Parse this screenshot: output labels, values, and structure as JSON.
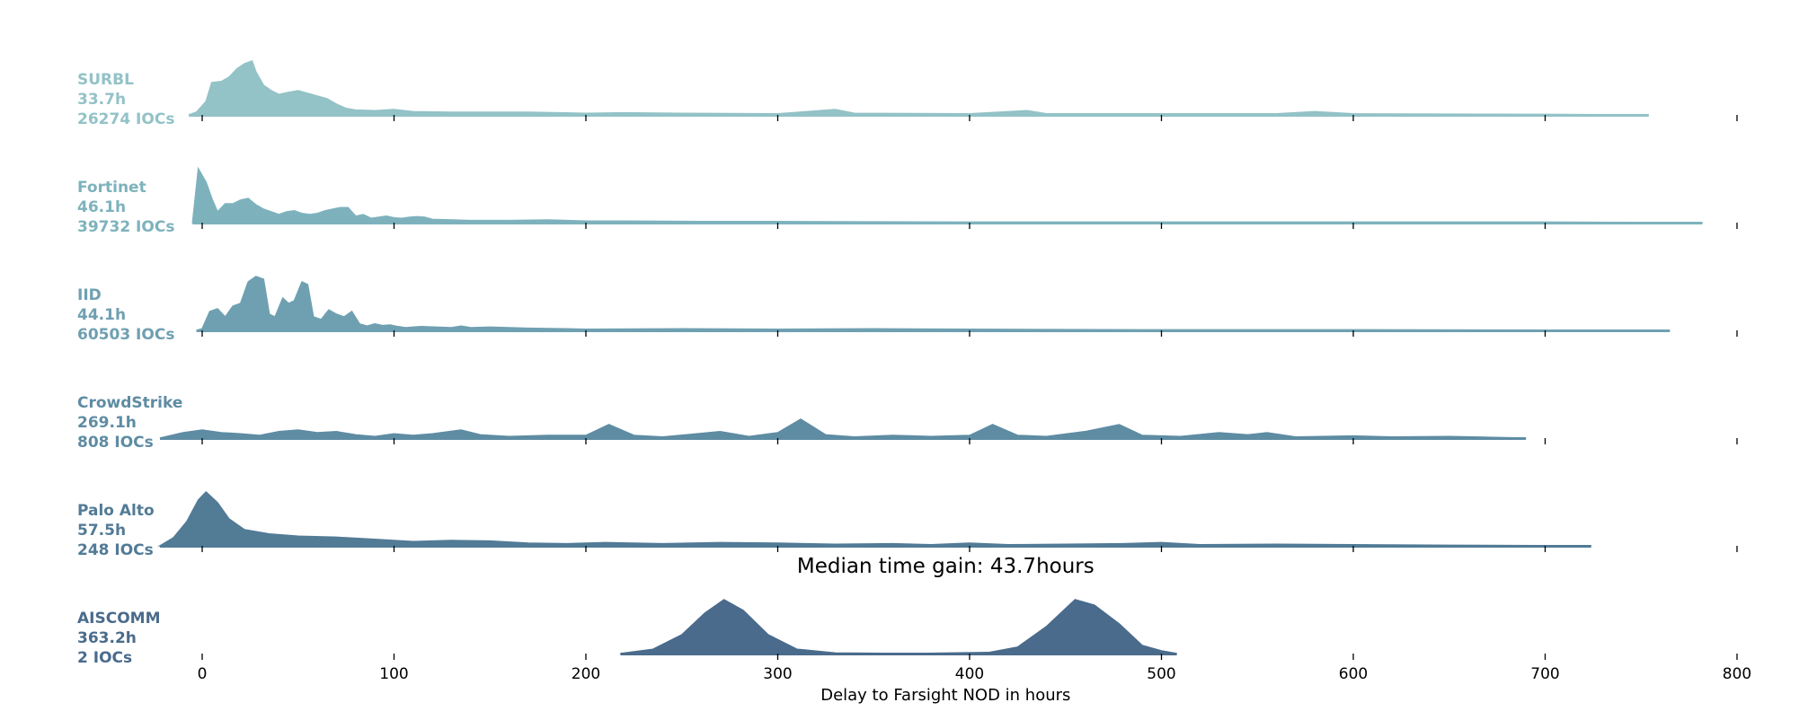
{
  "chart_data": {
    "type": "area",
    "subtype": "ridgeline",
    "xlabel": "Delay to Farsight NOD in hours",
    "xlim": [
      -25,
      800
    ],
    "xticks": [
      0,
      100,
      200,
      300,
      400,
      500,
      600,
      700,
      800
    ],
    "annotation": "Median time gain: 43.7hours",
    "series": [
      {
        "name": "SURBL",
        "median_label": "33.7h",
        "count_label": "26274 IOCs",
        "color": "#93c2c7",
        "x_range": [
          -7,
          754
        ],
        "points": [
          [
            -7,
            0
          ],
          [
            -3,
            0.05
          ],
          [
            2,
            0.25
          ],
          [
            5,
            0.6
          ],
          [
            10,
            0.62
          ],
          [
            14,
            0.7
          ],
          [
            18,
            0.85
          ],
          [
            22,
            0.95
          ],
          [
            26,
            1.0
          ],
          [
            28,
            0.8
          ],
          [
            32,
            0.55
          ],
          [
            36,
            0.45
          ],
          [
            40,
            0.38
          ],
          [
            45,
            0.42
          ],
          [
            50,
            0.45
          ],
          [
            55,
            0.4
          ],
          [
            60,
            0.35
          ],
          [
            65,
            0.3
          ],
          [
            70,
            0.2
          ],
          [
            75,
            0.12
          ],
          [
            80,
            0.09
          ],
          [
            90,
            0.08
          ],
          [
            100,
            0.1
          ],
          [
            110,
            0.06
          ],
          [
            130,
            0.05
          ],
          [
            150,
            0.05
          ],
          [
            170,
            0.05
          ],
          [
            200,
            0.03
          ],
          [
            220,
            0.04
          ],
          [
            250,
            0.03
          ],
          [
            300,
            0.02
          ],
          [
            330,
            0.1
          ],
          [
            340,
            0.03
          ],
          [
            400,
            0.02
          ],
          [
            430,
            0.08
          ],
          [
            440,
            0.02
          ],
          [
            500,
            0.02
          ],
          [
            560,
            0.02
          ],
          [
            580,
            0.06
          ],
          [
            600,
            0.02
          ],
          [
            700,
            0.01
          ],
          [
            754,
            0
          ]
        ]
      },
      {
        "name": "Fortinet",
        "median_label": "46.1h",
        "count_label": "39732 IOCs",
        "color": "#7db2bd",
        "x_range": [
          -5,
          782
        ],
        "points": [
          [
            -5,
            0
          ],
          [
            -2,
            1.0
          ],
          [
            2,
            0.75
          ],
          [
            5,
            0.45
          ],
          [
            8,
            0.2
          ],
          [
            12,
            0.35
          ],
          [
            16,
            0.35
          ],
          [
            20,
            0.42
          ],
          [
            24,
            0.45
          ],
          [
            28,
            0.33
          ],
          [
            32,
            0.25
          ],
          [
            36,
            0.2
          ],
          [
            40,
            0.15
          ],
          [
            44,
            0.2
          ],
          [
            48,
            0.22
          ],
          [
            52,
            0.17
          ],
          [
            56,
            0.15
          ],
          [
            60,
            0.17
          ],
          [
            64,
            0.22
          ],
          [
            68,
            0.25
          ],
          [
            72,
            0.28
          ],
          [
            76,
            0.28
          ],
          [
            80,
            0.12
          ],
          [
            84,
            0.15
          ],
          [
            88,
            0.08
          ],
          [
            92,
            0.1
          ],
          [
            96,
            0.12
          ],
          [
            100,
            0.09
          ],
          [
            104,
            0.08
          ],
          [
            108,
            0.1
          ],
          [
            112,
            0.11
          ],
          [
            116,
            0.1
          ],
          [
            120,
            0.06
          ],
          [
            140,
            0.04
          ],
          [
            160,
            0.04
          ],
          [
            180,
            0.05
          ],
          [
            200,
            0.03
          ],
          [
            220,
            0.03
          ],
          [
            260,
            0.02
          ],
          [
            300,
            0.02
          ],
          [
            400,
            0.01
          ],
          [
            500,
            0.01
          ],
          [
            600,
            0.01
          ],
          [
            700,
            0.01
          ],
          [
            782,
            0
          ]
        ]
      },
      {
        "name": "IID",
        "median_label": "44.1h",
        "count_label": "60503 IOCs",
        "color": "#6fa0b1",
        "x_range": [
          -3,
          765
        ],
        "points": [
          [
            -3,
            0
          ],
          [
            0,
            0.03
          ],
          [
            4,
            0.35
          ],
          [
            8,
            0.4
          ],
          [
            12,
            0.25
          ],
          [
            16,
            0.45
          ],
          [
            20,
            0.5
          ],
          [
            24,
            0.9
          ],
          [
            28,
            1.0
          ],
          [
            32,
            0.95
          ],
          [
            35,
            0.3
          ],
          [
            38,
            0.25
          ],
          [
            42,
            0.6
          ],
          [
            45,
            0.5
          ],
          [
            48,
            0.55
          ],
          [
            52,
            0.9
          ],
          [
            55,
            0.85
          ],
          [
            58,
            0.25
          ],
          [
            62,
            0.2
          ],
          [
            66,
            0.38
          ],
          [
            70,
            0.3
          ],
          [
            74,
            0.25
          ],
          [
            78,
            0.35
          ],
          [
            82,
            0.12
          ],
          [
            86,
            0.08
          ],
          [
            90,
            0.12
          ],
          [
            94,
            0.09
          ],
          [
            98,
            0.1
          ],
          [
            102,
            0.07
          ],
          [
            106,
            0.05
          ],
          [
            110,
            0.06
          ],
          [
            114,
            0.07
          ],
          [
            130,
            0.05
          ],
          [
            135,
            0.08
          ],
          [
            140,
            0.05
          ],
          [
            150,
            0.06
          ],
          [
            170,
            0.04
          ],
          [
            190,
            0.03
          ],
          [
            200,
            0.02
          ],
          [
            250,
            0.03
          ],
          [
            300,
            0.02
          ],
          [
            350,
            0.03
          ],
          [
            400,
            0.02
          ],
          [
            500,
            0.01
          ],
          [
            600,
            0.01
          ],
          [
            765,
            0
          ]
        ]
      },
      {
        "name": "CrowdStrike",
        "median_label": "269.1h",
        "count_label": "808 IOCs",
        "color": "#5e8ca3",
        "x_range": [
          -22,
          690
        ],
        "points": [
          [
            -22,
            0
          ],
          [
            -10,
            0.1
          ],
          [
            0,
            0.15
          ],
          [
            10,
            0.1
          ],
          [
            20,
            0.08
          ],
          [
            30,
            0.05
          ],
          [
            40,
            0.12
          ],
          [
            50,
            0.15
          ],
          [
            60,
            0.1
          ],
          [
            70,
            0.12
          ],
          [
            80,
            0.06
          ],
          [
            90,
            0.03
          ],
          [
            100,
            0.08
          ],
          [
            110,
            0.05
          ],
          [
            120,
            0.08
          ],
          [
            135,
            0.15
          ],
          [
            145,
            0.06
          ],
          [
            160,
            0.03
          ],
          [
            180,
            0.05
          ],
          [
            200,
            0.05
          ],
          [
            212,
            0.25
          ],
          [
            225,
            0.05
          ],
          [
            240,
            0.02
          ],
          [
            270,
            0.12
          ],
          [
            285,
            0.03
          ],
          [
            300,
            0.1
          ],
          [
            312,
            0.35
          ],
          [
            325,
            0.06
          ],
          [
            340,
            0.02
          ],
          [
            360,
            0.05
          ],
          [
            380,
            0.03
          ],
          [
            400,
            0.05
          ],
          [
            412,
            0.25
          ],
          [
            425,
            0.05
          ],
          [
            440,
            0.03
          ],
          [
            460,
            0.12
          ],
          [
            478,
            0.25
          ],
          [
            490,
            0.05
          ],
          [
            510,
            0.03
          ],
          [
            530,
            0.1
          ],
          [
            545,
            0.06
          ],
          [
            555,
            0.1
          ],
          [
            570,
            0.02
          ],
          [
            600,
            0.04
          ],
          [
            620,
            0.02
          ],
          [
            650,
            0.03
          ],
          [
            690,
            0
          ]
        ]
      },
      {
        "name": "Palo Alto",
        "median_label": "57.5h",
        "count_label": "248 IOCs",
        "color": "#527b96",
        "x_range": [
          -22,
          724
        ],
        "points": [
          [
            -22,
            0
          ],
          [
            -15,
            0.15
          ],
          [
            -8,
            0.45
          ],
          [
            -2,
            0.85
          ],
          [
            2,
            1.0
          ],
          [
            8,
            0.8
          ],
          [
            14,
            0.5
          ],
          [
            22,
            0.3
          ],
          [
            35,
            0.22
          ],
          [
            50,
            0.18
          ],
          [
            70,
            0.16
          ],
          [
            90,
            0.12
          ],
          [
            110,
            0.08
          ],
          [
            130,
            0.1
          ],
          [
            150,
            0.09
          ],
          [
            170,
            0.05
          ],
          [
            190,
            0.04
          ],
          [
            210,
            0.06
          ],
          [
            240,
            0.04
          ],
          [
            270,
            0.06
          ],
          [
            300,
            0.05
          ],
          [
            330,
            0.03
          ],
          [
            360,
            0.04
          ],
          [
            380,
            0.02
          ],
          [
            400,
            0.05
          ],
          [
            420,
            0.02
          ],
          [
            450,
            0.03
          ],
          [
            480,
            0.04
          ],
          [
            500,
            0.06
          ],
          [
            520,
            0.02
          ],
          [
            560,
            0.03
          ],
          [
            600,
            0.02
          ],
          [
            650,
            0.01
          ],
          [
            724,
            0
          ]
        ]
      },
      {
        "name": "AISCOMM",
        "median_label": "363.2h",
        "count_label": "2 IOCs",
        "color": "#4a6b8c",
        "x_range": [
          218,
          508
        ],
        "points": [
          [
            218,
            0
          ],
          [
            235,
            0.08
          ],
          [
            250,
            0.35
          ],
          [
            262,
            0.75
          ],
          [
            272,
            1.0
          ],
          [
            282,
            0.8
          ],
          [
            295,
            0.35
          ],
          [
            310,
            0.08
          ],
          [
            330,
            0.01
          ],
          [
            370,
            0
          ],
          [
            410,
            0.02
          ],
          [
            425,
            0.12
          ],
          [
            440,
            0.5
          ],
          [
            455,
            1.0
          ],
          [
            465,
            0.9
          ],
          [
            478,
            0.55
          ],
          [
            490,
            0.15
          ],
          [
            500,
            0.05
          ],
          [
            508,
            0
          ]
        ]
      }
    ]
  }
}
